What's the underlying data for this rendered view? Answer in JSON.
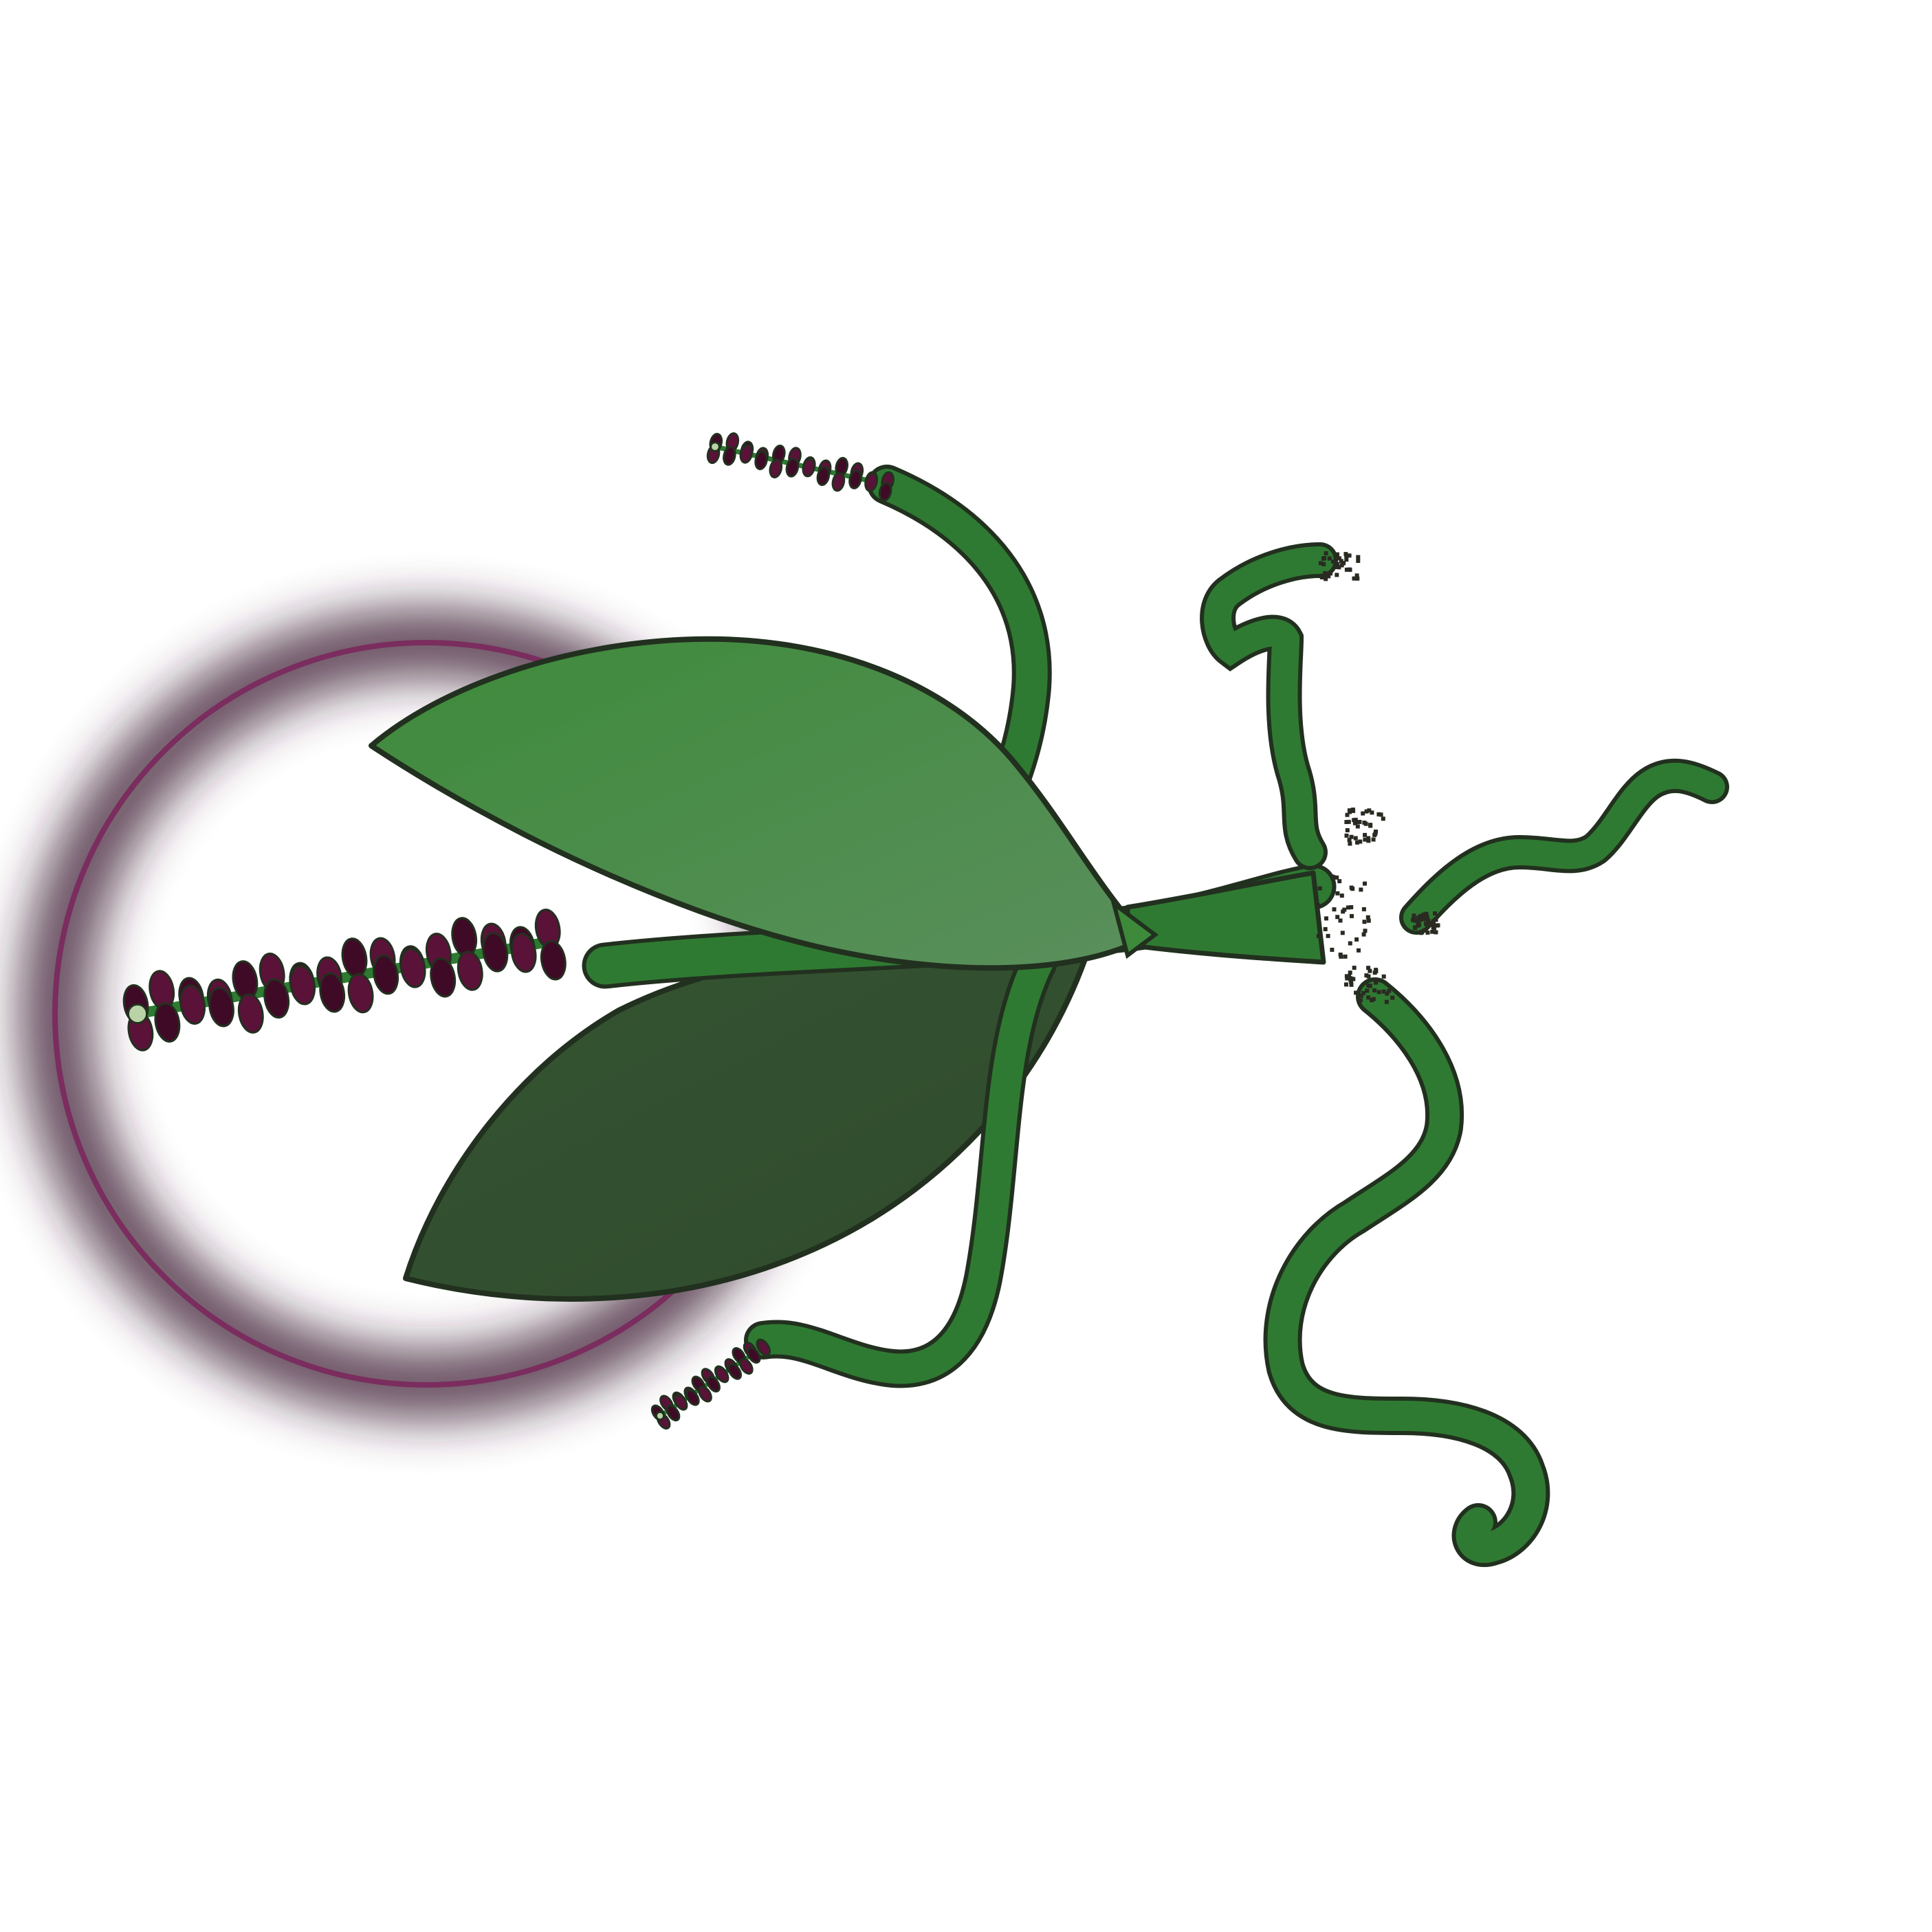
{
  "artwork": {
    "colors": {
      "background": "#ffffff",
      "halo_ring": "#7a2d5e",
      "halo_glow": "#3a1c33",
      "leaf_upper": "#3d8a3a",
      "leaf_upper_light": "#5a8f5c",
      "leaf_lower": "#355532",
      "leaf_lower_dark": "#2f4a2c",
      "stem": "#2f7a32",
      "outline": "#22301f",
      "berries": "#5a1238",
      "berries_dark": "#3f0a26",
      "flower_tip": "#b9d3a6",
      "soil_specks": "#2a2a22"
    },
    "elements": [
      "halo-ring",
      "upper-leaf",
      "lower-leaf",
      "main-stem",
      "large-flower-spike",
      "top-flower-spike",
      "bottom-flower-spike",
      "aerial-roots"
    ]
  }
}
